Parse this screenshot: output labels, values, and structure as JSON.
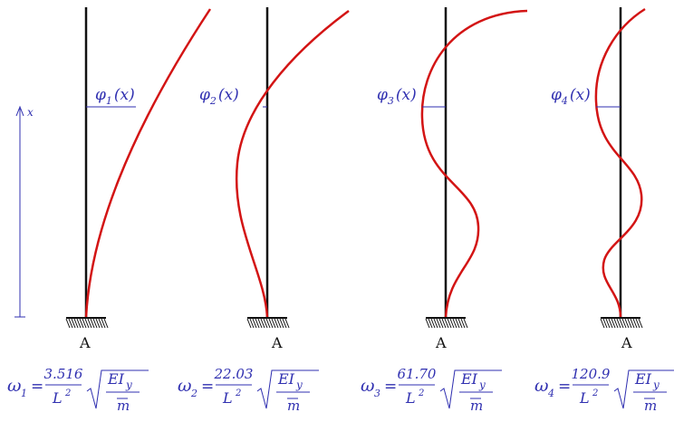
{
  "axis_label": "x",
  "modes": [
    {
      "phi": {
        "symbol": "φ",
        "sub": "1",
        "arg": "(x)"
      },
      "support": "A",
      "omega": {
        "symbol": "ω",
        "sub": "1",
        "equals": "=",
        "numerator": "3.516",
        "den_base": "L",
        "den_exp": "2",
        "rad_num": "EI",
        "rad_sub": "y",
        "rad_den": "m"
      }
    },
    {
      "phi": {
        "symbol": "φ",
        "sub": "2",
        "arg": "(x)"
      },
      "support": "A",
      "omega": {
        "symbol": "ω",
        "sub": "2",
        "equals": "=",
        "numerator": "22.03",
        "den_base": "L",
        "den_exp": "2",
        "rad_num": "EI",
        "rad_sub": "y",
        "rad_den": "m"
      }
    },
    {
      "phi": {
        "symbol": "φ",
        "sub": "3",
        "arg": "(x)"
      },
      "support": "A",
      "omega": {
        "symbol": "ω",
        "sub": "3",
        "equals": "=",
        "numerator": "61.70",
        "den_base": "L",
        "den_exp": "2",
        "rad_num": "EI",
        "rad_sub": "y",
        "rad_den": "m"
      }
    },
    {
      "phi": {
        "symbol": "φ",
        "sub": "4",
        "arg": "(x)"
      },
      "support": "A",
      "omega": {
        "symbol": "ω",
        "sub": "4",
        "equals": "=",
        "numerator": "120.9",
        "den_base": "L",
        "den_exp": "2",
        "rad_num": "EI",
        "rad_sub": "y",
        "rad_den": "m"
      }
    }
  ]
}
